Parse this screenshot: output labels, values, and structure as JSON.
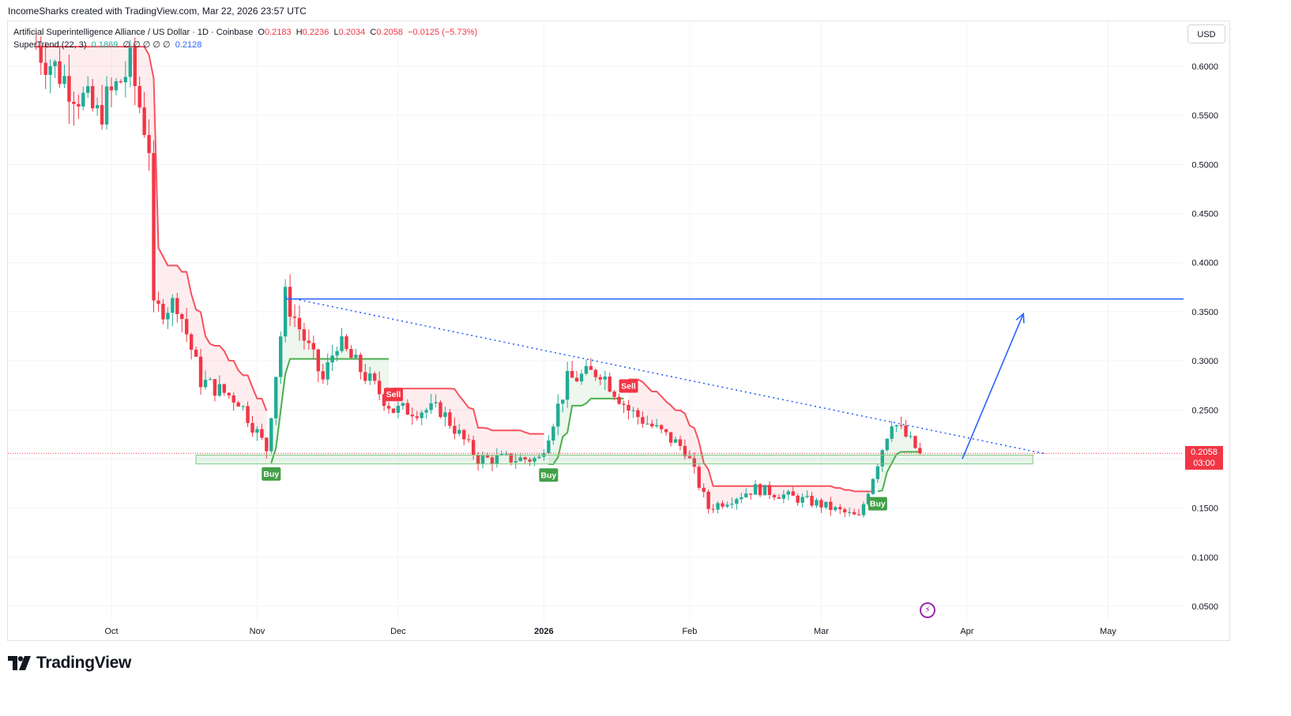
{
  "header": {
    "credit": "IncomeSharks created with TradingView.com, Mar 22, 2026 23:57 UTC"
  },
  "legend": {
    "symbol": "Artificial Superintelligence Alliance / US Dollar · 1D · Coinbase",
    "open_label": "O",
    "open": "0.2183",
    "high_label": "H",
    "high": "0.2236",
    "low_label": "L",
    "low": "0.2034",
    "close_label": "C",
    "close": "0.2058",
    "change": "−0.0125 (−5.73%)",
    "indicator": "SuperTrend (22, 3)",
    "indicator_value_1": "0.1869",
    "indicator_placeholders": "∅ ∅ ∅ ∅ ∅",
    "indicator_value_2": "0.2128"
  },
  "currency_button": "USD",
  "last_price": {
    "value": "0.2058",
    "countdown": "03:00"
  },
  "brand": {
    "wordmark": "TradingView"
  },
  "colors": {
    "up": "#22ab94",
    "down": "#f23645",
    "supertrend_up": "#4caf50",
    "supertrend_down": "#f7525f",
    "annotation": "#2962ff"
  },
  "chart_data": {
    "type": "candlestick",
    "y_axis": {
      "min": 0.03,
      "max": 0.63,
      "ticks": [
        "0.6000",
        "0.5500",
        "0.5000",
        "0.4500",
        "0.4000",
        "0.3500",
        "0.3000",
        "0.2500",
        "0.2000",
        "0.1500",
        "0.1000",
        "0.0500"
      ]
    },
    "x_axis": {
      "ticks": [
        {
          "label": "Oct",
          "date": "2025-10-01"
        },
        {
          "label": "Nov",
          "date": "2025-11-01"
        },
        {
          "label": "Dec",
          "date": "2025-12-01"
        },
        {
          "label": "2026",
          "date": "2026-01-01"
        },
        {
          "label": "Feb",
          "date": "2026-02-01"
        },
        {
          "label": "Mar",
          "date": "2026-03-01"
        },
        {
          "label": "Apr",
          "date": "2026-04-01"
        },
        {
          "label": "May",
          "date": "2026-05-01"
        }
      ]
    },
    "key_prices": [
      {
        "date": "2025-09-15",
        "close": 0.62
      },
      {
        "date": "2025-09-28",
        "close": 0.55
      },
      {
        "date": "2025-10-05",
        "close": 0.6
      },
      {
        "date": "2025-10-09",
        "close": 0.52
      },
      {
        "date": "2025-10-10",
        "close": 0.35
      },
      {
        "date": "2025-10-15",
        "close": 0.36
      },
      {
        "date": "2025-10-20",
        "close": 0.28
      },
      {
        "date": "2025-10-28",
        "close": 0.26
      },
      {
        "date": "2025-11-03",
        "close": 0.21
      },
      {
        "date": "2025-11-07",
        "close": 0.365
      },
      {
        "date": "2025-11-15",
        "close": 0.28
      },
      {
        "date": "2025-11-18",
        "close": 0.32
      },
      {
        "date": "2025-11-30",
        "close": 0.25
      },
      {
        "date": "2025-12-10",
        "close": 0.25
      },
      {
        "date": "2025-12-18",
        "close": 0.2
      },
      {
        "date": "2025-12-31",
        "close": 0.2
      },
      {
        "date": "2026-01-06",
        "close": 0.28
      },
      {
        "date": "2026-01-13",
        "close": 0.29
      },
      {
        "date": "2026-01-19",
        "close": 0.25
      },
      {
        "date": "2026-01-31",
        "close": 0.21
      },
      {
        "date": "2026-02-05",
        "close": 0.15
      },
      {
        "date": "2026-02-15",
        "close": 0.17
      },
      {
        "date": "2026-02-28",
        "close": 0.155
      },
      {
        "date": "2026-03-09",
        "close": 0.14
      },
      {
        "date": "2026-03-16",
        "close": 0.24
      },
      {
        "date": "2026-03-22",
        "close": 0.2058
      }
    ],
    "signals": [
      {
        "type": "Buy",
        "date": "2025-11-04"
      },
      {
        "type": "Sell",
        "date": "2025-11-30"
      },
      {
        "type": "Buy",
        "date": "2026-01-02"
      },
      {
        "type": "Sell",
        "date": "2026-01-19"
      },
      {
        "type": "Buy",
        "date": "2026-03-13"
      }
    ],
    "annotations": {
      "resistance_level": 0.363,
      "trendline": {
        "from": {
          "date": "2025-11-07",
          "price": 0.365
        },
        "to": {
          "date": "2026-04-18",
          "price": 0.205
        }
      },
      "support_zone": {
        "from": "2025-10-19",
        "to": "2026-04-15",
        "low": 0.195,
        "high": 0.204
      },
      "projection_arrow": {
        "from": {
          "date": "2026-03-31",
          "price": 0.2
        },
        "to": {
          "date": "2026-04-13",
          "price": 0.348
        }
      }
    },
    "last_close": 0.2058
  }
}
